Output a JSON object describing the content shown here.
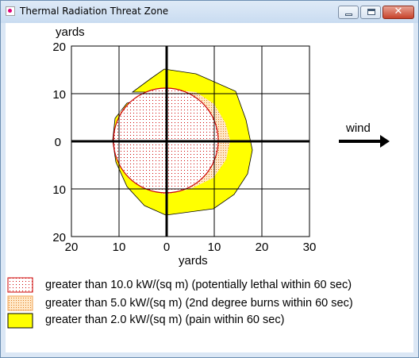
{
  "window": {
    "title": "Thermal Radiation Threat Zone"
  },
  "plot": {
    "y_axis_unit": "yards",
    "x_axis_unit": "yards",
    "x_ticks": [
      "20",
      "10",
      "0",
      "10",
      "20",
      "30"
    ],
    "y_ticks": [
      "20",
      "10",
      "0",
      "10",
      "20"
    ],
    "wind_label": "wind"
  },
  "legend": {
    "items": [
      {
        "label": "greater than 10.0 kW/(sq m) (potentially lethal within 60 sec)",
        "swatch": "red-dotted"
      },
      {
        "label": "greater than 5.0 kW/(sq m) (2nd degree burns within 60 sec)",
        "swatch": "orange-dotted"
      },
      {
        "label": "greater than 2.0 kW/(sq m) (pain within 60 sec)",
        "swatch": "yellow"
      }
    ]
  },
  "colors": {
    "lethal_zone": "#cc0000",
    "burn_zone": "#f4b26e",
    "pain_zone": "#ffff00"
  }
}
